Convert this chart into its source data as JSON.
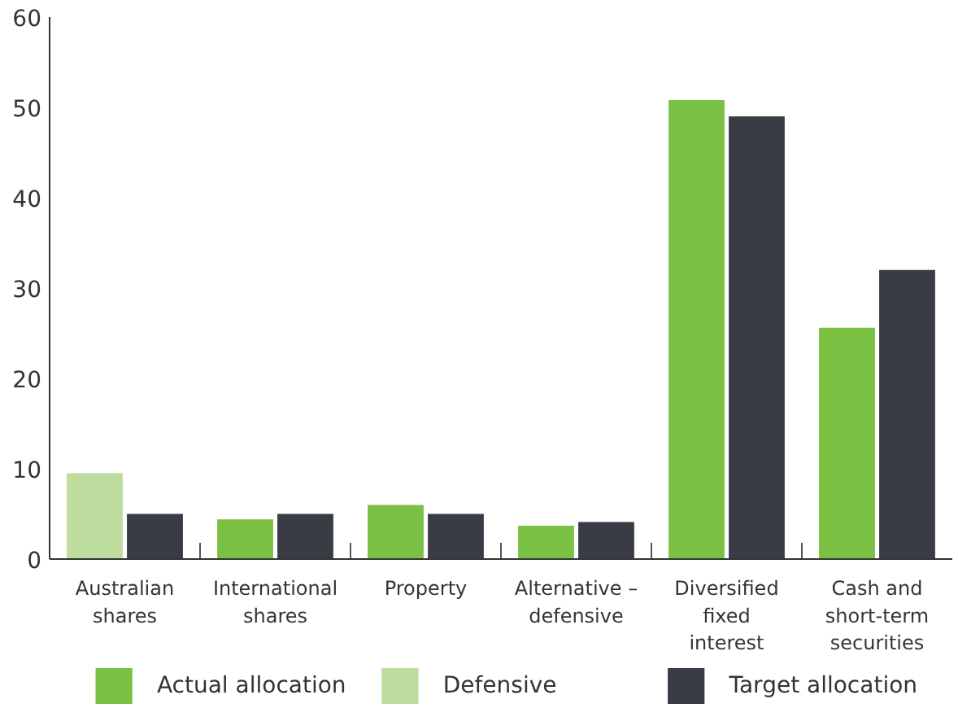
{
  "chart_data": {
    "type": "bar",
    "categories": [
      "Australian shares",
      "International shares",
      "Property",
      "Alternative – defensive",
      "Diversified fixed interest",
      "Cash and short-term securities"
    ],
    "series": [
      {
        "name": "Actual allocation",
        "color": "#7ac143",
        "values": [
          null,
          4.4,
          6.0,
          3.7,
          50.8,
          25.6
        ]
      },
      {
        "name": "Defensive",
        "color": "#bddc9e",
        "values": [
          9.5,
          null,
          null,
          null,
          null,
          null
        ]
      },
      {
        "name": "Target allocation",
        "color": "#393c44",
        "values": [
          5.0,
          5.0,
          5.0,
          4.1,
          49.0,
          32.0
        ]
      }
    ],
    "ylim": [
      0,
      60
    ],
    "yticks": [
      0,
      10,
      20,
      30,
      40,
      50,
      60
    ],
    "grid": false,
    "legend": "bottom"
  }
}
